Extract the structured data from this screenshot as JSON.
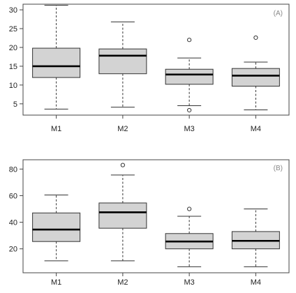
{
  "chart_data": [
    {
      "type": "box",
      "panel_label": "(A)",
      "categories": [
        "M1",
        "M2",
        "M3",
        "M4"
      ],
      "ylim": [
        2,
        31.5
      ],
      "yticks": [
        5,
        10,
        15,
        20,
        25,
        30
      ],
      "boxes": [
        {
          "min": 3.6,
          "q1": 12,
          "median": 15,
          "q3": 19.8,
          "max": 31.2,
          "outliers": []
        },
        {
          "min": 4.1,
          "q1": 13,
          "median": 17.8,
          "q3": 19.6,
          "max": 26.8,
          "outliers": []
        },
        {
          "min": 4.5,
          "q1": 10.2,
          "median": 12.8,
          "q3": 14.2,
          "max": 17.2,
          "outliers": [
            22,
            3.3
          ]
        },
        {
          "min": 3.4,
          "q1": 9.7,
          "median": 12.5,
          "q3": 14.4,
          "max": 16.1,
          "outliers": [
            22.6
          ]
        }
      ]
    },
    {
      "type": "box",
      "panel_label": "(B)",
      "categories": [
        "M1",
        "M2",
        "M3",
        "M4"
      ],
      "ylim": [
        2,
        87
      ],
      "yticks": [
        20,
        40,
        60,
        80
      ],
      "boxes": [
        {
          "min": 11,
          "q1": 25.5,
          "median": 34.5,
          "q3": 47,
          "max": 60.5,
          "outliers": []
        },
        {
          "min": 11,
          "q1": 35.5,
          "median": 47.5,
          "q3": 54.5,
          "max": 75.5,
          "outliers": [
            83
          ]
        },
        {
          "min": 6.5,
          "q1": 20,
          "median": 25.5,
          "q3": 31.5,
          "max": 44.5,
          "outliers": [
            50
          ]
        },
        {
          "min": 6.5,
          "q1": 20,
          "median": 26,
          "q3": 33,
          "max": 50,
          "outliers": []
        }
      ]
    }
  ]
}
